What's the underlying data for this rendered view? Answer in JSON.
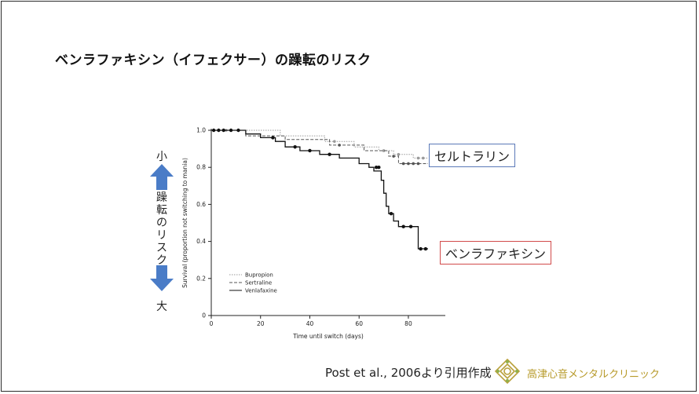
{
  "slide": {
    "title": "ベンラファキシン（イフェクサー）の躁転のリスク",
    "risk_low": "小",
    "risk_high": "大",
    "risk_vertical": [
      "躁",
      "転",
      "の",
      "リ",
      "ス",
      "ク"
    ],
    "callout_sertraline": "セルトラリン",
    "callout_venlafaxine": "ベンラファキシン",
    "citation": "Post et al., 2006より引用作成",
    "clinic_name": "高津心音メンタルクリニック",
    "colors": {
      "arrow": "#4a7cc7",
      "callout_blue": "#5b79b8",
      "callout_red": "#d24a4a",
      "clinic": "#b79a2a"
    }
  },
  "chart_data": {
    "type": "line",
    "title": "",
    "xlabel": "Time until switch (days)",
    "ylabel": "Survival (proportion not switching to mania)",
    "xlim": [
      0,
      95
    ],
    "ylim": [
      0,
      1.0
    ],
    "xticks": [
      0,
      20,
      40,
      60,
      80
    ],
    "yticks": [
      0,
      0.2,
      0.4,
      0.6,
      0.8,
      1.0
    ],
    "ytick_labels": [
      "0",
      "0.2",
      "0.4",
      "0.6",
      "0.8",
      "1.0"
    ],
    "legend_position": "bottom-left",
    "series": [
      {
        "name": "Bupropion",
        "style": "dotted",
        "color": "#9a9a9a",
        "x": [
          0,
          28,
          28,
          46,
          46,
          58,
          58,
          68,
          68,
          74,
          74,
          82,
          82,
          88
        ],
        "y": [
          1.0,
          1.0,
          0.97,
          0.97,
          0.94,
          0.94,
          0.91,
          0.91,
          0.89,
          0.89,
          0.87,
          0.87,
          0.85,
          0.85
        ],
        "censored": [
          [
            3,
            1.0
          ],
          [
            6,
            1.0
          ],
          [
            50,
            0.94
          ],
          [
            70,
            0.89
          ],
          [
            76,
            0.87
          ],
          [
            84,
            0.85
          ],
          [
            86,
            0.85
          ]
        ]
      },
      {
        "name": "Sertraline",
        "style": "dashed",
        "color": "#555555",
        "x": [
          0,
          14,
          14,
          30,
          30,
          48,
          48,
          62,
          62,
          72,
          72,
          76,
          76,
          88
        ],
        "y": [
          1.0,
          1.0,
          0.97,
          0.97,
          0.95,
          0.95,
          0.92,
          0.92,
          0.89,
          0.89,
          0.86,
          0.86,
          0.82,
          0.82
        ],
        "censored": [
          [
            52,
            0.92
          ],
          [
            74,
            0.86
          ],
          [
            78,
            0.82
          ],
          [
            80,
            0.82
          ],
          [
            82,
            0.82
          ],
          [
            84,
            0.82
          ]
        ]
      },
      {
        "name": "Venlafaxine",
        "style": "solid",
        "color": "#111111",
        "x": [
          0,
          14,
          14,
          20,
          20,
          26,
          26,
          30,
          30,
          36,
          36,
          44,
          44,
          52,
          52,
          60,
          60,
          64,
          64,
          66,
          66,
          69,
          69,
          70,
          70,
          71,
          71,
          72,
          72,
          74,
          74,
          76,
          76,
          84,
          84,
          88
        ],
        "y": [
          1.0,
          1.0,
          0.98,
          0.98,
          0.96,
          0.96,
          0.94,
          0.94,
          0.91,
          0.91,
          0.89,
          0.89,
          0.87,
          0.87,
          0.85,
          0.85,
          0.82,
          0.82,
          0.8,
          0.8,
          0.78,
          0.78,
          0.73,
          0.73,
          0.66,
          0.66,
          0.59,
          0.59,
          0.55,
          0.55,
          0.51,
          0.51,
          0.48,
          0.48,
          0.36,
          0.36
        ],
        "censored": [
          [
            1,
            1.0
          ],
          [
            3,
            1.0
          ],
          [
            5,
            1.0
          ],
          [
            8,
            1.0
          ],
          [
            11,
            1.0
          ],
          [
            25,
            0.96
          ],
          [
            34,
            0.91
          ],
          [
            40,
            0.89
          ],
          [
            48,
            0.87
          ],
          [
            67,
            0.8
          ],
          [
            68,
            0.8
          ],
          [
            73,
            0.55
          ],
          [
            78,
            0.48
          ],
          [
            81,
            0.48
          ],
          [
            85,
            0.36
          ],
          [
            87,
            0.36
          ]
        ]
      }
    ]
  }
}
